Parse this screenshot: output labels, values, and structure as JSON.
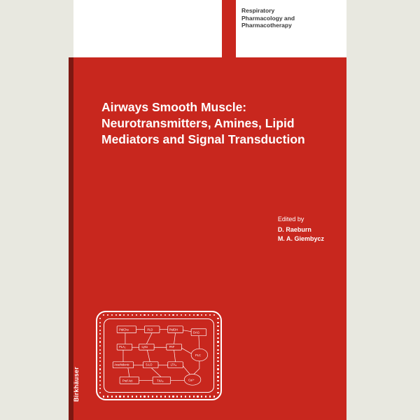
{
  "series": {
    "line1": "Respiratory",
    "line2": "Pharmacology and",
    "line3": "Pharmacotherapy"
  },
  "title": {
    "line1": "Airways Smooth Muscle:",
    "line2": "Neurotransmitters, Amines, Lipid",
    "line3": "Mediators and Signal Transduction"
  },
  "editors": {
    "prefix": "Edited by",
    "editor1": "D. Raeburn",
    "editor2": "M. A. Giembycz"
  },
  "publisher": "Birkhäuser",
  "colors": {
    "red": "#c8271e",
    "white": "#ffffff",
    "page_bg": "#ffffff",
    "body_bg": "#e8e8e0"
  },
  "diagram": {
    "labels": [
      "PtdCho",
      "PLD",
      "Pref Act",
      "5-LO",
      "LTA",
      "TXA",
      "Lyso-PAF",
      "PAF",
      "PtdOH",
      "DAG",
      "PLA",
      "PLC",
      "Ptd",
      "TXR",
      "Ca",
      "IP",
      "GTP",
      "ER",
      "R"
    ]
  }
}
